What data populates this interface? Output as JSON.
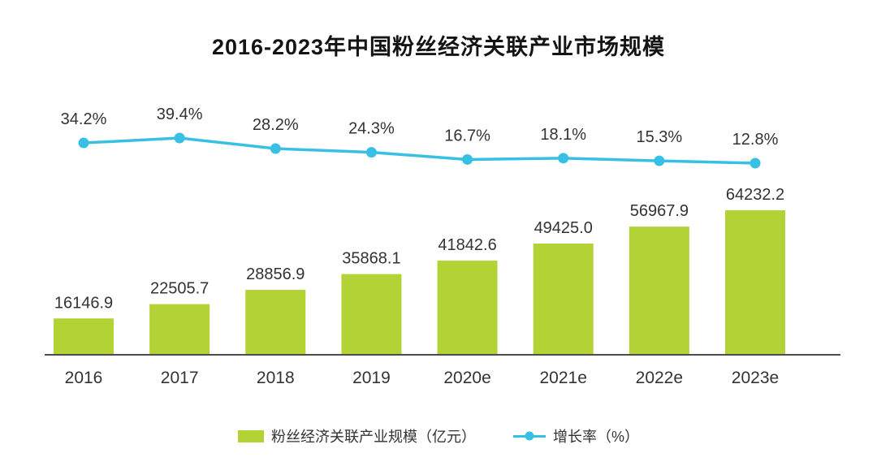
{
  "chart_data": {
    "type": "bar+line",
    "title": "2016-2023年中国粉丝经济关联产业市场规模",
    "categories": [
      "2016",
      "2017",
      "2018",
      "2019",
      "2020e",
      "2021e",
      "2022e",
      "2023e"
    ],
    "series": [
      {
        "name": "粉丝经济关联产业规模（亿元）",
        "type": "bar",
        "color": "#b2d235",
        "values": [
          16146.9,
          22505.7,
          28856.9,
          35868.1,
          41842.6,
          49425.0,
          56967.9,
          64232.2
        ],
        "labels": [
          "16146.9",
          "22505.7",
          "28856.9",
          "35868.1",
          "41842.6",
          "49425.0",
          "56967.9",
          "64232.2"
        ]
      },
      {
        "name": "增长率（%）",
        "type": "line",
        "color": "#38c0e4",
        "values": [
          34.2,
          39.4,
          28.2,
          24.3,
          16.7,
          18.1,
          15.3,
          12.8
        ],
        "labels": [
          "34.2%",
          "39.4%",
          "28.2%",
          "24.3%",
          "16.7%",
          "18.1%",
          "15.3%",
          "12.8%"
        ]
      }
    ],
    "xlabel": "",
    "ylabel": "",
    "legend_position": "bottom",
    "grid": false,
    "axis_color": "#4d4d4d",
    "label_color": "#333333"
  }
}
